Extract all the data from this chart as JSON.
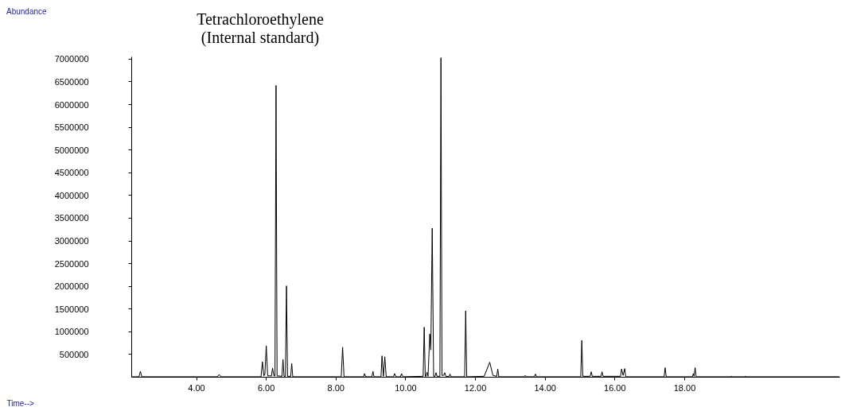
{
  "chart_data": {
    "type": "line",
    "ylabel": "Abundance",
    "xlabel": "Time-->",
    "annotations": [
      "Tetrachloroethylene\n(Internal standard)"
    ],
    "xlim": [
      2.14,
      22.45
    ],
    "xticks": [
      {
        "value": 4,
        "label": "4.00"
      },
      {
        "value": 6,
        "label": "6.00"
      },
      {
        "value": 8,
        "label": "8.00"
      },
      {
        "value": 10,
        "label": "10.00"
      },
      {
        "value": 12,
        "label": "12.00"
      },
      {
        "value": 14,
        "label": "14.00"
      },
      {
        "value": 16,
        "label": "16.00"
      },
      {
        "value": 18,
        "label": "18.00"
      }
    ],
    "ylim": [
      0,
      7050000
    ],
    "yticks": [
      500000,
      1000000,
      1500000,
      2000000,
      2500000,
      3000000,
      3500000,
      4000000,
      4500000,
      5000000,
      5500000,
      6000000,
      6500000,
      7000000
    ],
    "grid": false,
    "marker": "none",
    "line_style": "solid",
    "series": [
      {
        "color": "#000000",
        "x": [
          2.14,
          2.35,
          2.39,
          2.43,
          4.6,
          4.65,
          4.7,
          5.85,
          5.89,
          5.93,
          5.96,
          6.0,
          6.04,
          6.15,
          6.18,
          6.22,
          6.25,
          6.28,
          6.31,
          6.45,
          6.48,
          6.51,
          6.55,
          6.58,
          6.61,
          6.7,
          6.73,
          6.76,
          8.15,
          8.19,
          8.23,
          8.79,
          8.82,
          8.85,
          9.03,
          9.06,
          9.09,
          9.29,
          9.32,
          9.36,
          9.4,
          9.44,
          9.65,
          9.68,
          9.72,
          9.85,
          9.88,
          9.92,
          10.5,
          10.53,
          10.56,
          10.58,
          10.61,
          10.64,
          10.69,
          10.72,
          10.76,
          10.8,
          10.84,
          10.87,
          10.9,
          10.98,
          11.01,
          11.04,
          11.09,
          11.12,
          11.15,
          11.24,
          11.27,
          11.3,
          11.69,
          11.72,
          11.75,
          12.25,
          12.41,
          12.5,
          12.61,
          12.64,
          12.67,
          13.39,
          13.42,
          13.45,
          13.69,
          13.72,
          13.75,
          15.02,
          15.05,
          15.08,
          15.29,
          15.32,
          15.35,
          15.6,
          15.63,
          15.66,
          16.16,
          16.19,
          16.235,
          16.28,
          16.31,
          17.41,
          17.44,
          17.47,
          18.22,
          18.25,
          18.27,
          18.3,
          18.33,
          19.3,
          19.33,
          19.36,
          19.71,
          19.74,
          19.77,
          22.45
        ],
        "values": [
          10000,
          10000,
          130000,
          10000,
          10000,
          60000,
          10000,
          10000,
          340000,
          30000,
          60000,
          690000,
          30000,
          30000,
          200000,
          30000,
          30000,
          6420000,
          30000,
          20000,
          390000,
          20000,
          20000,
          2010000,
          20000,
          20000,
          300000,
          10000,
          10000,
          660000,
          10000,
          10000,
          80000,
          10000,
          10000,
          130000,
          10000,
          10000,
          470000,
          20000,
          450000,
          10000,
          10000,
          80000,
          10000,
          10000,
          80000,
          10000,
          20000,
          1100000,
          20000,
          20000,
          110000,
          20000,
          950000,
          600000,
          3280000,
          20000,
          20000,
          100000,
          20000,
          20000,
          7030000,
          40000,
          40000,
          100000,
          20000,
          10000,
          70000,
          10000,
          10000,
          1460000,
          10000,
          20000,
          330000,
          40000,
          20000,
          180000,
          10000,
          10000,
          40000,
          10000,
          10000,
          70000,
          10000,
          10000,
          810000,
          20000,
          20000,
          120000,
          20000,
          20000,
          120000,
          20000,
          20000,
          180000,
          40000,
          190000,
          10000,
          10000,
          210000,
          10000,
          10000,
          80000,
          20000,
          210000,
          10000,
          10000,
          20000,
          10000,
          10000,
          20000,
          10000,
          10000
        ]
      }
    ]
  }
}
